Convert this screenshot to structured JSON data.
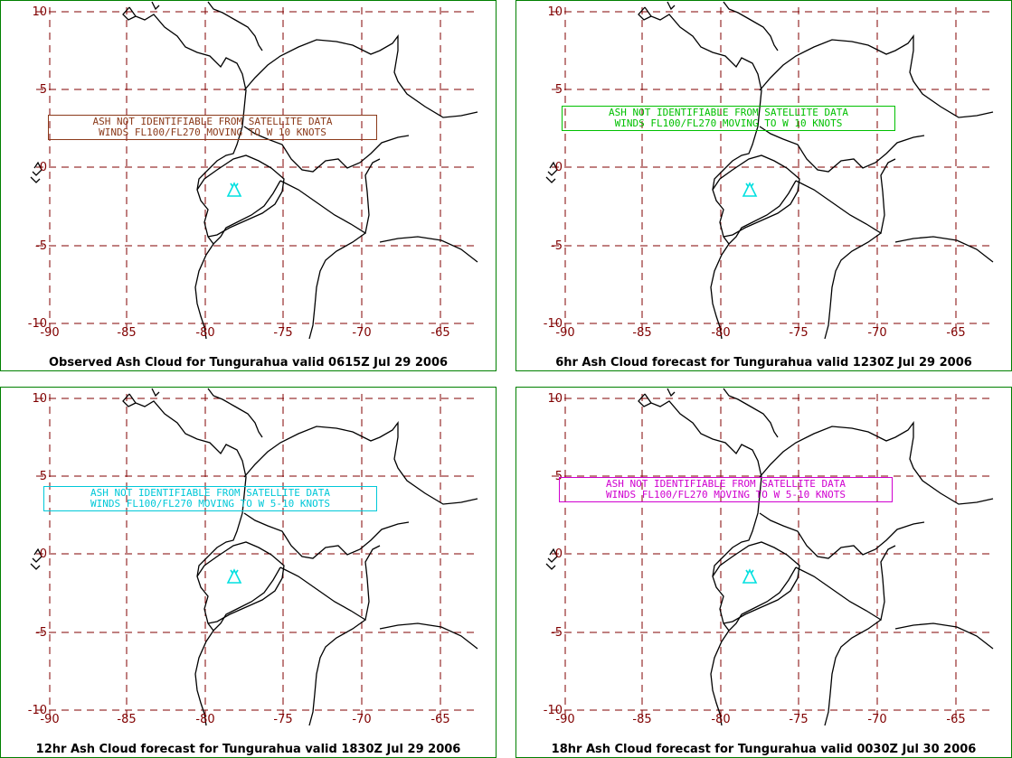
{
  "map": {
    "lat_ticks": [
      "10",
      "5",
      "0",
      "-5",
      "-10"
    ],
    "lon_ticks": [
      "-90",
      "-85",
      "-80",
      "-75",
      "-70",
      "-65"
    ],
    "colors": {
      "grid": "#800000",
      "coast": "#000000",
      "frame": "#008000",
      "volcano": "#00e0e0"
    },
    "volcano_icon": "volcano-triangle-icon"
  },
  "panels": [
    {
      "caption": "Observed Ash Cloud for Tungurahua valid 0615Z Jul 29 2006",
      "line1": "ASH NOT IDENTIFIABLE FROM SATELLITE DATA",
      "line2": "WINDS FL100/FL270 MOVING TO W 10 KNOTS",
      "color": "#8b3a1a"
    },
    {
      "caption": "6hr Ash Cloud forecast for Tungurahua valid 1230Z Jul 29 2006",
      "line1": "ASH NOT IDENTIFIABLE FROM SATELLITE DATA",
      "line2": "WINDS FL100/FL270 MOVING TO W 10 KNOTS",
      "color": "#00c000"
    },
    {
      "caption": "12hr Ash Cloud forecast for Tungurahua valid 1830Z Jul 29 2006",
      "line1": "ASH NOT IDENTIFIABLE FROM SATELLITE DATA",
      "line2": "WINDS FL100/FL270 MOVING TO W 5-10 KNOTS",
      "color": "#00c8d8"
    },
    {
      "caption": "18hr Ash Cloud forecast for Tungurahua valid 0030Z Jul 30 2006",
      "line1": "ASH NOT IDENTIFIABLE FROM SATELLITE DATA",
      "line2": "WINDS FL100/FL270 MOVING TO W 5-10 KNOTS",
      "color": "#d000d0"
    }
  ]
}
